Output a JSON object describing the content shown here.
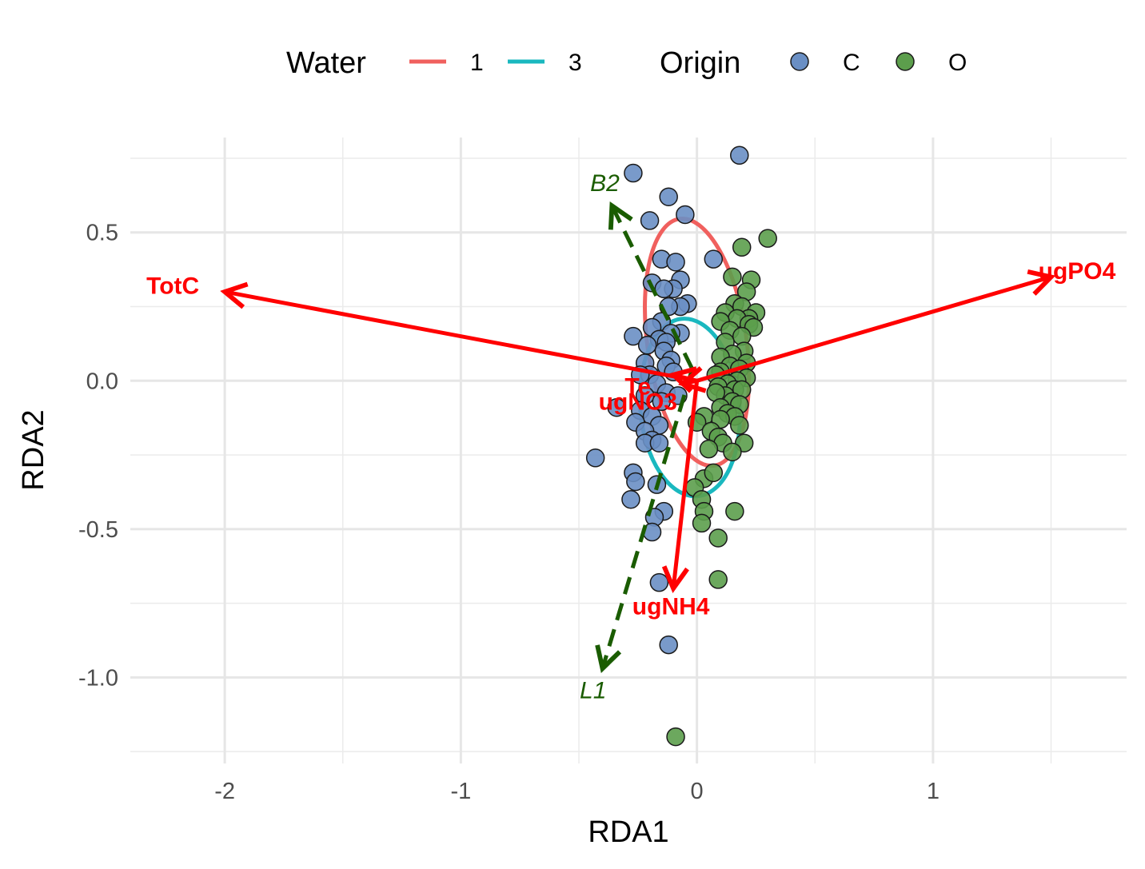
{
  "chart_data": {
    "type": "scatter",
    "xlabel": "RDA1",
    "ylabel": "RDA2",
    "xlim": [
      -2.4,
      1.82
    ],
    "ylim": [
      -1.29,
      0.82
    ],
    "x_ticks": [
      -2,
      -1,
      0,
      1
    ],
    "x_tick_labels": [
      "-2",
      "-1",
      "0",
      "1"
    ],
    "y_ticks": [
      -1.0,
      -0.5,
      0.0,
      0.5
    ],
    "y_tick_labels": [
      "-1.0",
      "-0.5",
      "0.0",
      "0.5"
    ],
    "grid": true,
    "legend_position": "top",
    "legend": {
      "water_title": "Water",
      "water_items": [
        {
          "label": "1",
          "color": "#f0605e"
        },
        {
          "label": "3",
          "color": "#1ab8bf"
        }
      ],
      "origin_title": "Origin",
      "origin_items": [
        {
          "label": "C",
          "color": "#6a8fc4"
        },
        {
          "label": "O",
          "color": "#5c9e4c"
        }
      ]
    },
    "point_series": [
      {
        "name": "C",
        "color": "#6a8fc4",
        "points": [
          [
            0.18,
            0.76
          ],
          [
            -0.27,
            0.7
          ],
          [
            -0.12,
            0.62
          ],
          [
            -0.05,
            0.56
          ],
          [
            -0.2,
            0.54
          ],
          [
            0.07,
            0.41
          ],
          [
            -0.15,
            0.41
          ],
          [
            -0.09,
            0.4
          ],
          [
            -0.07,
            0.34
          ],
          [
            -0.19,
            0.33
          ],
          [
            -0.1,
            0.31
          ],
          [
            -0.14,
            0.31
          ],
          [
            -0.04,
            0.26
          ],
          [
            -0.07,
            0.25
          ],
          [
            -0.12,
            0.25
          ],
          [
            -0.15,
            0.2
          ],
          [
            -0.19,
            0.18
          ],
          [
            -0.07,
            0.16
          ],
          [
            -0.11,
            0.16
          ],
          [
            -0.27,
            0.15
          ],
          [
            -0.16,
            0.14
          ],
          [
            -0.13,
            0.13
          ],
          [
            -0.21,
            0.12
          ],
          [
            -0.14,
            0.1
          ],
          [
            -0.11,
            0.07
          ],
          [
            -0.22,
            0.06
          ],
          [
            -0.13,
            0.05
          ],
          [
            -0.1,
            0.03
          ],
          [
            -0.2,
            0.02
          ],
          [
            -0.24,
            0.02
          ],
          [
            -0.17,
            -0.01
          ],
          [
            -0.13,
            -0.04
          ],
          [
            -0.08,
            -0.05
          ],
          [
            -0.22,
            -0.05
          ],
          [
            -0.15,
            -0.07
          ],
          [
            -0.34,
            -0.09
          ],
          [
            -0.24,
            -0.1
          ],
          [
            -0.19,
            -0.12
          ],
          [
            -0.26,
            -0.14
          ],
          [
            -0.16,
            -0.15
          ],
          [
            -0.22,
            -0.17
          ],
          [
            -0.19,
            -0.2
          ],
          [
            -0.22,
            -0.21
          ],
          [
            -0.16,
            -0.21
          ],
          [
            -0.43,
            -0.26
          ],
          [
            -0.27,
            -0.31
          ],
          [
            -0.26,
            -0.34
          ],
          [
            -0.17,
            -0.35
          ],
          [
            -0.28,
            -0.4
          ],
          [
            -0.14,
            -0.44
          ],
          [
            -0.18,
            -0.46
          ],
          [
            -0.19,
            -0.51
          ],
          [
            -0.16,
            -0.68
          ],
          [
            -0.12,
            -0.89
          ]
        ]
      },
      {
        "name": "O",
        "color": "#5c9e4c",
        "points": [
          [
            0.3,
            0.48
          ],
          [
            0.19,
            0.45
          ],
          [
            0.15,
            0.35
          ],
          [
            0.23,
            0.34
          ],
          [
            0.21,
            0.3
          ],
          [
            0.16,
            0.26
          ],
          [
            0.19,
            0.25
          ],
          [
            0.25,
            0.23
          ],
          [
            0.12,
            0.23
          ],
          [
            0.22,
            0.21
          ],
          [
            0.17,
            0.21
          ],
          [
            0.1,
            0.2
          ],
          [
            0.22,
            0.19
          ],
          [
            0.24,
            0.18
          ],
          [
            0.14,
            0.17
          ],
          [
            0.19,
            0.15
          ],
          [
            0.12,
            0.13
          ],
          [
            0.2,
            0.1
          ],
          [
            0.15,
            0.09
          ],
          [
            0.1,
            0.08
          ],
          [
            0.21,
            0.06
          ],
          [
            0.14,
            0.05
          ],
          [
            0.18,
            0.04
          ],
          [
            0.1,
            0.03
          ],
          [
            0.08,
            0.02
          ],
          [
            0.21,
            0.01
          ],
          [
            0.17,
            0.0
          ],
          [
            0.13,
            -0.01
          ],
          [
            0.09,
            -0.02
          ],
          [
            0.16,
            -0.03
          ],
          [
            0.19,
            -0.03
          ],
          [
            0.12,
            -0.05
          ],
          [
            0.08,
            -0.04
          ],
          [
            0.15,
            -0.07
          ],
          [
            0.18,
            -0.08
          ],
          [
            0.1,
            -0.09
          ],
          [
            0.13,
            -0.11
          ],
          [
            0.16,
            -0.12
          ],
          [
            0.03,
            -0.12
          ],
          [
            0.1,
            -0.13
          ],
          [
            0.0,
            -0.14
          ],
          [
            0.18,
            -0.15
          ],
          [
            0.06,
            -0.17
          ],
          [
            0.09,
            -0.19
          ],
          [
            0.11,
            -0.21
          ],
          [
            0.2,
            -0.21
          ],
          [
            0.05,
            -0.23
          ],
          [
            0.15,
            -0.24
          ],
          [
            0.03,
            -0.33
          ],
          [
            0.07,
            -0.31
          ],
          [
            -0.01,
            -0.36
          ],
          [
            0.02,
            -0.4
          ],
          [
            0.03,
            -0.44
          ],
          [
            0.16,
            -0.44
          ],
          [
            0.02,
            -0.48
          ],
          [
            0.09,
            -0.53
          ],
          [
            0.09,
            -0.67
          ],
          [
            -0.09,
            -1.2
          ]
        ]
      }
    ],
    "ellipses": [
      {
        "name": "1",
        "color": "#f0605e",
        "cx": 0.0,
        "cy": 0.13,
        "rx": 0.21,
        "ry": 0.42,
        "angle_deg": -8
      },
      {
        "name": "3",
        "color": "#1ab8bf",
        "cx": -0.03,
        "cy": -0.09,
        "rx": 0.21,
        "ry": 0.3,
        "angle_deg": -5
      }
    ],
    "env_vectors": [
      {
        "label": "TotC",
        "x": -2.0,
        "y": 0.3,
        "label_x": -2.22,
        "label_y": 0.32
      },
      {
        "label": "ugPO4",
        "x": 1.5,
        "y": 0.35,
        "label_x": 1.61,
        "label_y": 0.37
      },
      {
        "label": "ugNH4",
        "x": -0.1,
        "y": -0.7,
        "label_x": -0.11,
        "label_y": -0.76
      },
      {
        "label": "ugNO3",
        "x": -0.06,
        "y": -0.01,
        "label_x": -0.25,
        "label_y": -0.07
      },
      {
        "label": "Te",
        "x": -0.1,
        "y": 0.02,
        "label_x": -0.25,
        "label_y": -0.02
      }
    ],
    "trajectory": {
      "color": "#1a5c00",
      "points": [
        [
          -0.36,
          0.59
        ],
        [
          -0.02,
          0.04
        ],
        [
          -0.4,
          -0.97
        ]
      ],
      "labels": [
        {
          "text": "B2",
          "x": -0.39,
          "y": 0.64
        },
        {
          "text": "L1",
          "x": -0.44,
          "y": -1.07
        }
      ]
    },
    "vector_color": "#ff0000"
  }
}
